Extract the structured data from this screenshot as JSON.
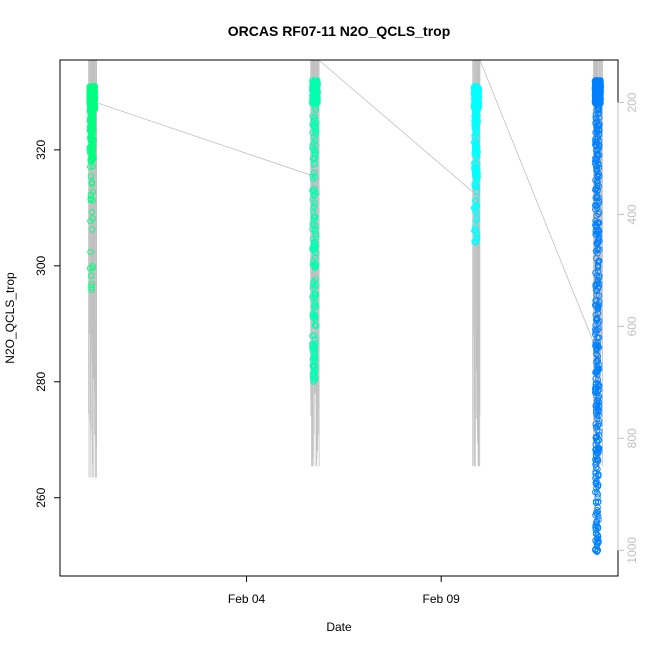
{
  "chart_data": {
    "type": "scatter",
    "title": "ORCAS RF07-11 N2O_QCLS_trop",
    "xlabel": "Date",
    "ylabel": "N2O_QCLS_trop",
    "x_ticks": [
      {
        "date": "2016-02-04",
        "label": "Feb 04"
      },
      {
        "date": "2016-02-09",
        "label": "Feb 09"
      }
    ],
    "xlim": [
      "2016-01-30T05:00",
      "2016-02-13T13:00"
    ],
    "y_ticks": [
      260,
      280,
      300,
      320
    ],
    "ylim": [
      246.5,
      335.5
    ],
    "y2_ticks": [
      200,
      400,
      600,
      800,
      1000
    ],
    "y2lim": [
      1046,
      124
    ],
    "right_axis_color": "#c0c0c0",
    "flights": [
      {
        "date_start": "2016-01-30T22:40",
        "date_end": "2016-01-31T03:10",
        "color": "#00ff80",
        "n2o_min": 294,
        "n2o_core_min": 318,
        "n2o_max": 331,
        "pressure_max": 870
      },
      {
        "date_start": "2016-02-05T15:50",
        "date_end": "2016-02-05T20:30",
        "color": "#00ffb0",
        "n2o_min": 280,
        "n2o_core_min": 288,
        "n2o_max": 332,
        "pressure_max": 850
      },
      {
        "date_start": "2016-02-09T19:40",
        "date_end": "2016-02-09T23:50",
        "color": "#00ffff",
        "n2o_min": 304,
        "n2o_core_min": 315,
        "n2o_max": 331,
        "pressure_max": 850
      },
      {
        "date_start": "2016-02-12T22:10",
        "date_end": "2016-02-13T03:00",
        "color": "#0080ff",
        "n2o_min": 250,
        "n2o_core_min": 268,
        "n2o_max": 332,
        "pressure_max": 850
      }
    ],
    "pressure_connector": [
      [
        "2016-01-31T03:10",
        200
      ],
      [
        "2016-02-05T15:50",
        330
      ],
      [
        "2016-02-05T20:30",
        124
      ],
      [
        "2016-02-09T19:40",
        360
      ],
      [
        "2016-02-09T23:50",
        124
      ],
      [
        "2016-02-12T22:10",
        630
      ]
    ],
    "pressure_line_color": "#c0c0c0"
  }
}
